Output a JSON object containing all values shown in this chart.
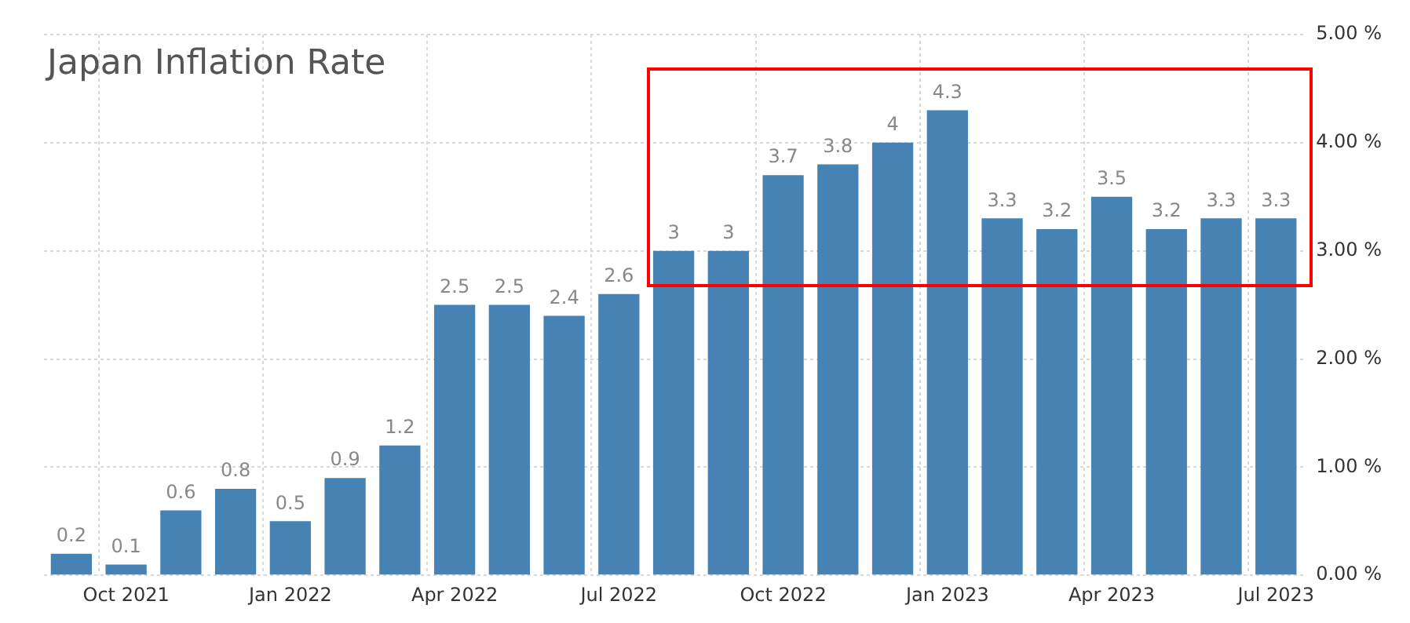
{
  "chart_data": {
    "type": "bar",
    "title": "Japan Inflation Rate",
    "categories": [
      null,
      "Oct 2021",
      null,
      null,
      "Jan 2022",
      null,
      null,
      "Apr 2022",
      null,
      null,
      "Jul 2022",
      null,
      null,
      "Oct 2022",
      null,
      null,
      "Jan 2023",
      null,
      null,
      "Apr 2023",
      null,
      null,
      "Jul 2023"
    ],
    "values": [
      0.2,
      0.1,
      0.6,
      0.8,
      0.5,
      0.9,
      1.2,
      2.5,
      2.5,
      2.4,
      2.6,
      3,
      3,
      3.7,
      3.8,
      4,
      4.3,
      3.3,
      3.2,
      3.5,
      3.2,
      3.3,
      3.3
    ],
    "color": "#4682b4",
    "ylim": [
      0,
      5
    ],
    "yticks": [
      {
        "value": 0,
        "label": "0.00 %"
      },
      {
        "value": 1,
        "label": "1.00 %"
      },
      {
        "value": 2,
        "label": "2.00 %"
      },
      {
        "value": 3,
        "label": "3.00 %"
      },
      {
        "value": 4,
        "label": "4.00 %"
      },
      {
        "value": 5,
        "label": "5.00 %"
      }
    ],
    "grid": true,
    "data_labels": true
  }
}
